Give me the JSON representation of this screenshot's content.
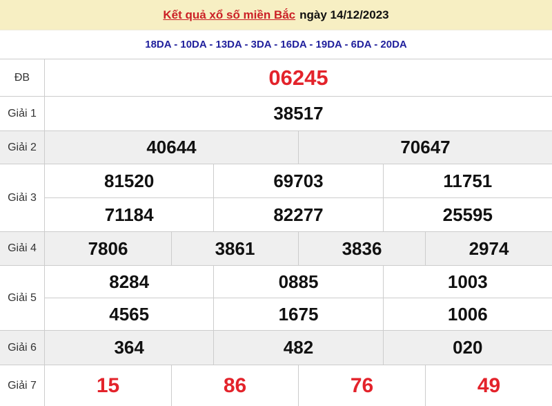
{
  "header": {
    "title_link": "Kết quả xổ số miền Bắc",
    "title_date": "ngày 14/12/2023"
  },
  "stations": {
    "text": "18DA - 10DA - 13DA - 3DA - 16DA - 19DA - 6DA - 20DA"
  },
  "colors": {
    "header_bg": "#f7efc3",
    "title_red": "#cb2026",
    "station_blue": "#1f1f9c",
    "number_red": "#e3232b",
    "number_black": "#111111",
    "alt_row_bg": "#efefef",
    "border": "#cccccc"
  },
  "results": {
    "db": {
      "label": "ĐB",
      "numbers": [
        "06245"
      ]
    },
    "g1": {
      "label": "Giải 1",
      "numbers": [
        "38517"
      ]
    },
    "g2": {
      "label": "Giải 2",
      "numbers": [
        "40644",
        "70647"
      ]
    },
    "g3": {
      "label": "Giải 3",
      "rows": [
        [
          "81520",
          "69703",
          "11751"
        ],
        [
          "71184",
          "82277",
          "25595"
        ]
      ]
    },
    "g4": {
      "label": "Giải 4",
      "numbers": [
        "7806",
        "3861",
        "3836",
        "2974"
      ]
    },
    "g5": {
      "label": "Giải 5",
      "rows": [
        [
          "8284",
          "0885",
          "1003"
        ],
        [
          "4565",
          "1675",
          "1006"
        ]
      ]
    },
    "g6": {
      "label": "Giải 6",
      "numbers": [
        "364",
        "482",
        "020"
      ]
    },
    "g7": {
      "label": "Giải 7",
      "numbers": [
        "15",
        "86",
        "76",
        "49"
      ]
    }
  }
}
